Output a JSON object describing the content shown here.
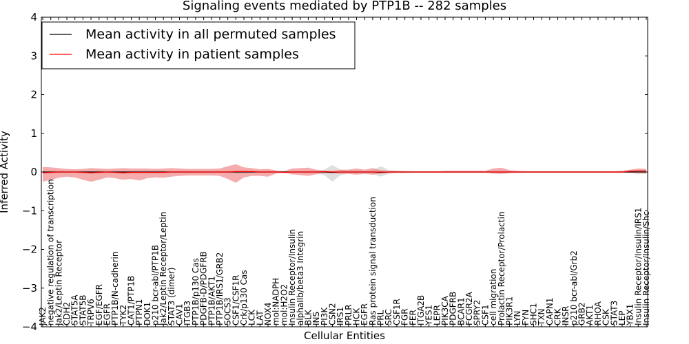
{
  "chart_data": {
    "type": "line",
    "title": "Signaling events mediated by PTP1B -- 282 samples",
    "xlabel": "Cellular Entities",
    "ylabel": "Inferred Activity",
    "ylim": [
      -4,
      4
    ],
    "yticks": [
      "4",
      "3",
      "2",
      "1",
      "0",
      "−1",
      "−2",
      "−3",
      "−4"
    ],
    "legend_position": "top-left",
    "grid": false,
    "colors": {
      "permuted": "#000000",
      "patient": "#ff0000",
      "patient_band": "#f08080",
      "permuted_band": "#b0b0b0"
    },
    "categories": [
      "JAK2",
      "negative regulation of transcription",
      "Jak2/Leptin Receptor",
      "CDH2",
      "STAT5A",
      "STAT5B",
      "TRPV6",
      "EGF/EGFR",
      "EGFR",
      "PTP1B/N-cadherin",
      "TYK2",
      "CAT1/PTP1B",
      "PTPN1",
      "DOK1",
      "p210 bcr-abl/PTP1B",
      "Jak2/Leptin Receptor/Leptin",
      "STAT3 (dimer)",
      "CAV1",
      "ITGB3",
      "PTP1B/p130 Cas",
      "PDGFB-D/PDGFRB",
      "PTP1B/AKT1",
      "PTP1B/IRS1/GRB2",
      "SOCS3",
      "CSF1/CSF1R",
      "Crk/p130 Cas",
      "LCK",
      "LAT",
      "NOX4",
      "mol:NADPH",
      "mol:H2O2",
      "Insulin Receptor/Insulin",
      "alphaIIb/beta3 Integrin",
      "BLK",
      "INS",
      "PI3K",
      "CSN2",
      "IRS1",
      "PRLR",
      "HCK",
      "EGFR",
      "Ras protein signal transduction",
      "PRL",
      "SRC",
      "CSF1R",
      "FGR",
      "FER",
      "ITGA2B",
      "YES1",
      "LEPR",
      "PIK3CA",
      "PDGFRB",
      "BCAR1",
      "FCGR2A",
      "SPRY2",
      "CSF1",
      "cell migration",
      "Prolactin Receptor/Prolactin",
      "PIK3R1",
      "LYN",
      "FYN",
      "SHC1",
      "TXN",
      "CAPN1",
      "CRK",
      "INSR",
      "p210 bcr-abl/Grb2",
      "GRB2",
      "AKT1",
      "RHOA",
      "CSK",
      "STAT3",
      "LEP",
      "YBX1",
      "Insulin Receptor/Insulin/IRS1",
      "Insulin Receptor/Insulin/Shc"
    ],
    "series": [
      {
        "name": "Mean activity in all permuted samples",
        "color": "#000000",
        "values": [
          0,
          0,
          0,
          0,
          0,
          0,
          0,
          0,
          0,
          0,
          0,
          0,
          0,
          0,
          0,
          0,
          0,
          0,
          0,
          0,
          0,
          0,
          0,
          0,
          0,
          0,
          0,
          0,
          0,
          0,
          0,
          0,
          0,
          0,
          0,
          0,
          -0.01,
          0,
          0,
          0,
          0,
          0,
          -0.01,
          0,
          0,
          0,
          0,
          0,
          0,
          0,
          0,
          0,
          0,
          0,
          0,
          0,
          0,
          0,
          0,
          0,
          0,
          0,
          0,
          0,
          0,
          0,
          0,
          0,
          0,
          0,
          0,
          0,
          0,
          0,
          0,
          0
        ],
        "band_upper": [
          0.04,
          0.04,
          0.04,
          0.03,
          0.03,
          0.03,
          0.03,
          0.04,
          0.04,
          0.03,
          0.03,
          0.03,
          0.03,
          0.03,
          0.03,
          0.03,
          0.03,
          0.03,
          0.03,
          0.03,
          0.03,
          0.03,
          0.03,
          0.04,
          0.04,
          0.04,
          0.03,
          0.03,
          0.03,
          0.02,
          0.02,
          0.03,
          0.03,
          0.03,
          0.03,
          0.06,
          0.18,
          0.06,
          0.04,
          0.04,
          0.03,
          0.04,
          0.15,
          0.05,
          0.03,
          0.03,
          0.02,
          0.02,
          0.02,
          0.02,
          0.02,
          0.02,
          0.02,
          0.02,
          0.02,
          0.02,
          0.03,
          0.03,
          0.02,
          0.02,
          0.02,
          0.02,
          0.02,
          0.02,
          0.02,
          0.02,
          0.02,
          0.02,
          0.02,
          0.02,
          0.02,
          0.02,
          0.02,
          0.02,
          0.02,
          0.02
        ],
        "band_lower": [
          -0.04,
          -0.04,
          -0.04,
          -0.03,
          -0.03,
          -0.03,
          -0.03,
          -0.04,
          -0.04,
          -0.03,
          -0.03,
          -0.03,
          -0.03,
          -0.03,
          -0.03,
          -0.03,
          -0.03,
          -0.03,
          -0.03,
          -0.03,
          -0.03,
          -0.03,
          -0.03,
          -0.04,
          -0.04,
          -0.04,
          -0.03,
          -0.03,
          -0.03,
          -0.02,
          -0.02,
          -0.03,
          -0.03,
          -0.03,
          -0.03,
          -0.08,
          -0.25,
          -0.08,
          -0.04,
          -0.04,
          -0.03,
          -0.05,
          -0.12,
          -0.05,
          -0.03,
          -0.03,
          -0.02,
          -0.02,
          -0.02,
          -0.02,
          -0.02,
          -0.02,
          -0.02,
          -0.02,
          -0.02,
          -0.02,
          -0.03,
          -0.03,
          -0.02,
          -0.02,
          -0.02,
          -0.02,
          -0.02,
          -0.02,
          -0.02,
          -0.02,
          -0.02,
          -0.02,
          -0.02,
          -0.02,
          -0.02,
          -0.02,
          -0.02,
          -0.02,
          -0.02,
          -0.02
        ]
      },
      {
        "name": "Mean activity in patient samples",
        "color": "#ff0000",
        "values": [
          -0.02,
          -0.01,
          0,
          0,
          0,
          -0.01,
          -0.02,
          -0.01,
          0,
          -0.01,
          -0.02,
          -0.01,
          -0.01,
          -0.01,
          -0.01,
          -0.01,
          0,
          0,
          0,
          0,
          0,
          0,
          0,
          0,
          0.01,
          0.01,
          0.01,
          0,
          0,
          0,
          -0.01,
          0,
          0,
          0,
          0,
          0.01,
          0,
          0,
          0,
          0,
          0,
          0,
          0,
          0,
          0,
          0,
          0,
          0,
          0,
          0,
          0,
          0,
          0,
          0,
          0,
          0,
          0,
          0,
          0,
          0,
          0,
          0,
          0,
          0,
          0,
          0,
          0,
          0,
          0,
          0,
          0,
          0,
          0,
          0.02,
          0.03,
          0.03
        ],
        "band_upper": [
          0.13,
          0.12,
          0.1,
          0.08,
          0.07,
          0.08,
          0.1,
          0.09,
          0.08,
          0.09,
          0.1,
          0.09,
          0.09,
          0.09,
          0.08,
          0.09,
          0.1,
          0.09,
          0.08,
          0.08,
          0.08,
          0.08,
          0.09,
          0.15,
          0.2,
          0.12,
          0.1,
          0.07,
          0.08,
          0.04,
          0.02,
          0.09,
          0.1,
          0.11,
          0.06,
          0.03,
          0.03,
          0.06,
          0.06,
          0.09,
          0.06,
          0.1,
          0.05,
          0.03,
          0.03,
          0.02,
          0.02,
          0.02,
          0.02,
          0.02,
          0.03,
          0.03,
          0.03,
          0.03,
          0.03,
          0.03,
          0.09,
          0.11,
          0.05,
          0.03,
          0.02,
          0.02,
          0.02,
          0.02,
          0.02,
          0.02,
          0.02,
          0.02,
          0.02,
          0.02,
          0.02,
          0.02,
          0.03,
          0.06,
          0.09,
          0.08
        ],
        "band_lower": [
          -0.25,
          -0.2,
          -0.15,
          -0.12,
          -0.14,
          -0.2,
          -0.25,
          -0.2,
          -0.14,
          -0.16,
          -0.2,
          -0.18,
          -0.22,
          -0.16,
          -0.14,
          -0.15,
          -0.12,
          -0.1,
          -0.09,
          -0.09,
          -0.09,
          -0.09,
          -0.1,
          -0.18,
          -0.28,
          -0.14,
          -0.1,
          -0.1,
          -0.12,
          -0.04,
          -0.02,
          -0.06,
          -0.08,
          -0.1,
          -0.06,
          -0.03,
          -0.03,
          -0.05,
          -0.05,
          -0.07,
          -0.05,
          -0.07,
          -0.04,
          -0.03,
          -0.02,
          -0.02,
          -0.02,
          -0.02,
          -0.02,
          -0.02,
          -0.02,
          -0.02,
          -0.02,
          -0.02,
          -0.02,
          -0.02,
          -0.04,
          -0.05,
          -0.03,
          -0.02,
          -0.02,
          -0.02,
          -0.02,
          -0.02,
          -0.02,
          -0.02,
          -0.02,
          -0.02,
          -0.02,
          -0.02,
          -0.02,
          -0.02,
          -0.02,
          -0.02,
          -0.04,
          -0.04
        ]
      }
    ]
  }
}
